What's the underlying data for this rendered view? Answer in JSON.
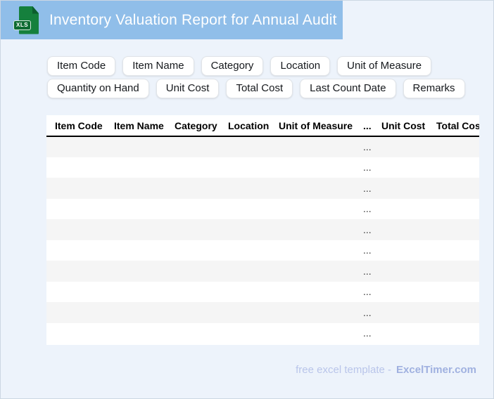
{
  "header": {
    "title": "Inventory Valuation Report for Annual Audit",
    "file_badge": "XLS"
  },
  "chips": [
    "Item Code",
    "Item Name",
    "Category",
    "Location",
    "Unit of Measure",
    "Quantity on Hand",
    "Unit Cost",
    "Total Cost",
    "Last Count Date",
    "Remarks"
  ],
  "table": {
    "columns": [
      "Item Code",
      "Item Name",
      "Category",
      "Location",
      "Unit of Measure",
      "...",
      "Unit Cost",
      "Total Cost"
    ],
    "row_count": 10,
    "placeholder": "..."
  },
  "footer": {
    "prefix": "free excel template -",
    "brand": "ExcelTimer.com"
  },
  "colors": {
    "header_bg": "#90bee9",
    "page_bg": "#edf3fb",
    "row_stripe": "#f5f5f5",
    "icon_green": "#15803d",
    "icon_dark_green": "#0d6b32",
    "footer_text": "#b9c5ea",
    "footer_brand": "#a0b1e0"
  }
}
